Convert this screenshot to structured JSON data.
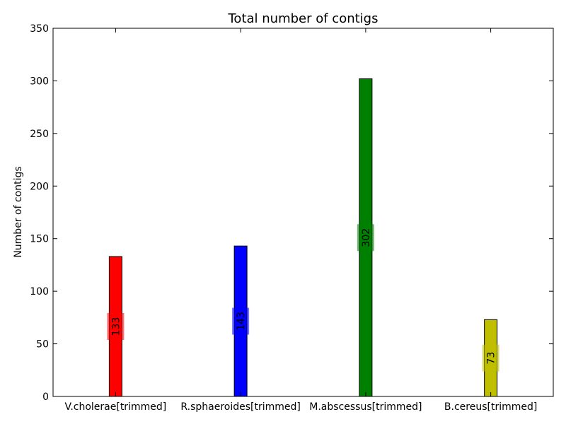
{
  "chart_data": {
    "type": "bar",
    "title": "Total number of contigs",
    "xlabel": "",
    "ylabel": "Number of contigs",
    "ylim": [
      0,
      350
    ],
    "yticks": [
      0,
      50,
      100,
      150,
      200,
      250,
      300,
      350
    ],
    "categories": [
      "V.cholerae[trimmed]",
      "R.sphaeroides[trimmed]",
      "M.abscessus[trimmed]",
      "B.cereus[trimmed]"
    ],
    "values": [
      133,
      143,
      302,
      73
    ],
    "data_labels": [
      "133",
      "143",
      "302",
      "73"
    ],
    "colors": [
      "#ff0000",
      "#0000ff",
      "#008000",
      "#bfbf00"
    ],
    "grid": false,
    "legend": "none"
  }
}
